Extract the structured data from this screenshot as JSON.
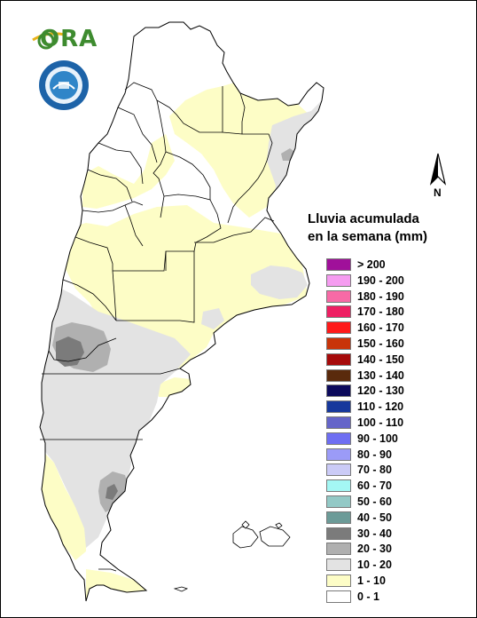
{
  "logos": {
    "ora_text": "ORA",
    "seal_text": "SERVICIO METEOROLÓGICO NACIONAL · ARGENTINA"
  },
  "north_label": "N",
  "legend": {
    "title_line1": "Lluvia acumulada",
    "title_line2": "en la semana (mm)",
    "classes": [
      {
        "label": "> 200",
        "color": "#a0109a"
      },
      {
        "label": "190 - 200",
        "color": "#f59cf0"
      },
      {
        "label": "180 - 190",
        "color": "#f76aa6"
      },
      {
        "label": "170 - 180",
        "color": "#ee1f63"
      },
      {
        "label": "160 - 170",
        "color": "#fe1a1a"
      },
      {
        "label": "150 - 160",
        "color": "#c8340a"
      },
      {
        "label": "140 - 150",
        "color": "#a60a0a"
      },
      {
        "label": "130 - 140",
        "color": "#5a2a0c"
      },
      {
        "label": "120 - 130",
        "color": "#0c0a5c"
      },
      {
        "label": "110 - 120",
        "color": "#16389c"
      },
      {
        "label": "100 - 110",
        "color": "#6565c9"
      },
      {
        "label": "90 - 100",
        "color": "#6e6ef2"
      },
      {
        "label": "80 - 90",
        "color": "#9b9bf7"
      },
      {
        "label": "70 - 80",
        "color": "#cbcbf7"
      },
      {
        "label": "60 - 70",
        "color": "#a4f7f4"
      },
      {
        "label": "50 - 60",
        "color": "#93c9c6"
      },
      {
        "label": "40 - 50",
        "color": "#6c9b98"
      },
      {
        "label": "30 - 40",
        "color": "#7b7b7b"
      },
      {
        "label": "20 - 30",
        "color": "#b0b0b0"
      },
      {
        "label": "10 - 20",
        "color": "#e3e3e3"
      },
      {
        "label": "1 - 10",
        "color": "#fdfdc6"
      },
      {
        "label": "0 - 1",
        "color": "#ffffff"
      }
    ]
  }
}
